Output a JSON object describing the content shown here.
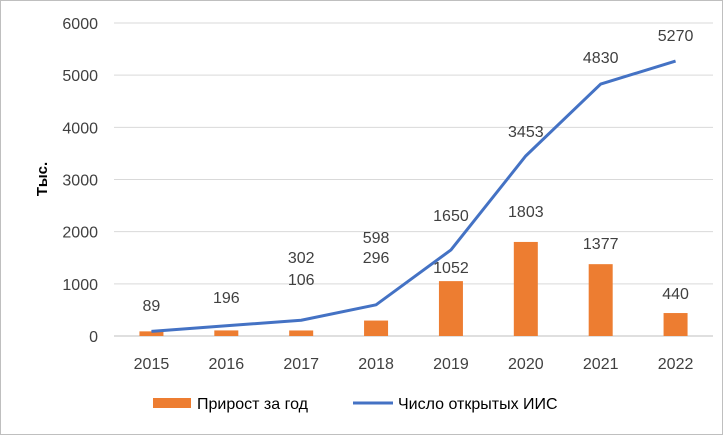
{
  "chart_data": {
    "type": "bar+line",
    "ylabel": "Тыс.",
    "ylim": [
      0,
      6000
    ],
    "yticks": [
      "0",
      "1000",
      "2000",
      "3000",
      "4000",
      "5000",
      "6000"
    ],
    "categories": [
      "2015",
      "2016",
      "2017",
      "2018",
      "2019",
      "2020",
      "2021",
      "2022"
    ],
    "grid": true,
    "legend_position": "bottom",
    "series": [
      {
        "name": "Прирост за год",
        "type": "bar",
        "color": "#ed7d31",
        "values": [
          89,
          107,
          106,
          296,
          1052,
          1803,
          1377,
          440
        ],
        "labels": [
          "89",
          "",
          "106",
          "296",
          "1052",
          "1803",
          "1377",
          "440"
        ]
      },
      {
        "name": "Число открытых ИИС",
        "type": "line",
        "color": "#4472c4",
        "values": [
          89,
          196,
          302,
          598,
          1650,
          3453,
          4830,
          5270
        ],
        "labels": [
          "",
          "196",
          "302",
          "598",
          "1650",
          "3453",
          "4830",
          "5270"
        ]
      }
    ]
  }
}
